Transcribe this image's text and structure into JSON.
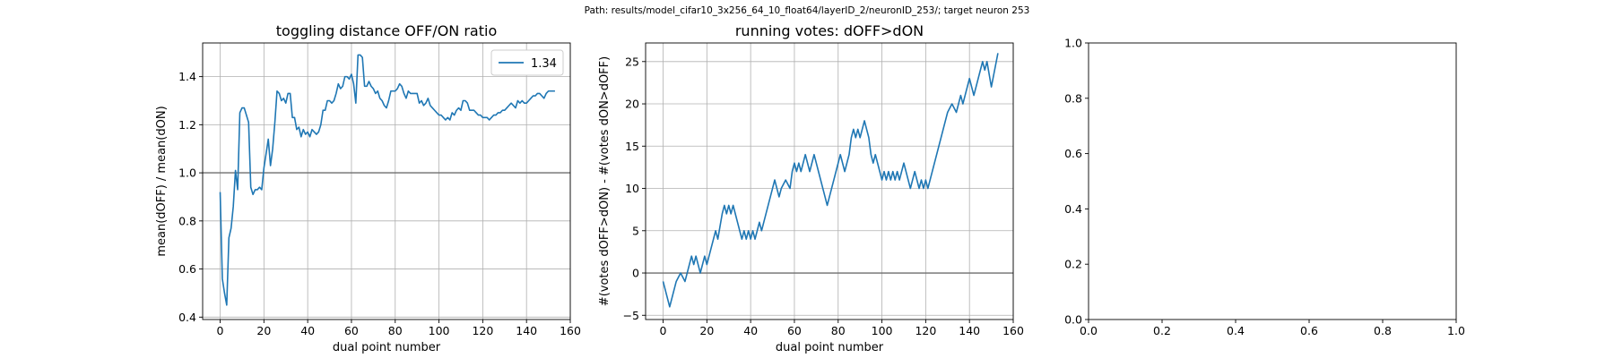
{
  "suptitle": "Path: results/model_cifar10_3x256_64_10_float64/layerID_2/neuronID_253/; target neuron 253",
  "chart_data": [
    {
      "type": "line",
      "title": "toggling distance OFF/ON ratio",
      "xlabel": "dual point number",
      "ylabel": "mean(dOFF) / mean(dON)",
      "xlim": [
        -8,
        160
      ],
      "ylim": [
        0.39,
        1.54
      ],
      "xticks": [
        0,
        20,
        40,
        60,
        80,
        100,
        120,
        140,
        160
      ],
      "yticks": [
        0.4,
        0.6,
        0.8,
        1.0,
        1.2,
        1.4
      ],
      "ytick_labels": [
        "0.4",
        "0.6",
        "0.8",
        "1.0",
        "1.2",
        "1.4"
      ],
      "grid": true,
      "hline": 1.0,
      "legend": {
        "position": "top-right",
        "entries": [
          "1.34"
        ]
      },
      "series": [
        {
          "name": "1.34",
          "color": "#1f77b4",
          "x": [
            0,
            1,
            2,
            3,
            4,
            5,
            6,
            7,
            8,
            9,
            10,
            11,
            12,
            13,
            14,
            15,
            16,
            17,
            18,
            19,
            20,
            21,
            22,
            23,
            24,
            25,
            26,
            27,
            28,
            29,
            30,
            31,
            32,
            33,
            34,
            35,
            36,
            37,
            38,
            39,
            40,
            41,
            42,
            43,
            44,
            45,
            46,
            47,
            48,
            49,
            50,
            51,
            52,
            53,
            54,
            55,
            56,
            57,
            58,
            59,
            60,
            61,
            62,
            63,
            64,
            65,
            66,
            67,
            68,
            69,
            70,
            71,
            72,
            73,
            74,
            75,
            76,
            77,
            78,
            79,
            80,
            81,
            82,
            83,
            84,
            85,
            86,
            87,
            88,
            89,
            90,
            91,
            92,
            93,
            94,
            95,
            96,
            97,
            98,
            99,
            100,
            101,
            102,
            103,
            104,
            105,
            106,
            107,
            108,
            109,
            110,
            111,
            112,
            113,
            114,
            115,
            116,
            117,
            118,
            119,
            120,
            121,
            122,
            123,
            124,
            125,
            126,
            127,
            128,
            129,
            130,
            131,
            132,
            133,
            134,
            135,
            136,
            137,
            138,
            139,
            140,
            141,
            142,
            143,
            144,
            145,
            146,
            147,
            148,
            149,
            150,
            151,
            152,
            153
          ],
          "y": [
            0.92,
            0.56,
            0.5,
            0.45,
            0.73,
            0.77,
            0.86,
            1.01,
            0.93,
            1.25,
            1.27,
            1.27,
            1.24,
            1.21,
            0.94,
            0.91,
            0.93,
            0.93,
            0.94,
            0.93,
            1.02,
            1.08,
            1.14,
            1.03,
            1.1,
            1.21,
            1.34,
            1.33,
            1.3,
            1.31,
            1.29,
            1.33,
            1.33,
            1.23,
            1.23,
            1.18,
            1.19,
            1.15,
            1.18,
            1.16,
            1.17,
            1.15,
            1.18,
            1.17,
            1.16,
            1.17,
            1.2,
            1.26,
            1.26,
            1.3,
            1.3,
            1.29,
            1.3,
            1.33,
            1.37,
            1.35,
            1.36,
            1.4,
            1.4,
            1.39,
            1.41,
            1.37,
            1.29,
            1.49,
            1.49,
            1.48,
            1.36,
            1.36,
            1.38,
            1.36,
            1.35,
            1.33,
            1.34,
            1.31,
            1.3,
            1.28,
            1.27,
            1.3,
            1.34,
            1.34,
            1.34,
            1.35,
            1.37,
            1.36,
            1.33,
            1.31,
            1.34,
            1.33,
            1.33,
            1.33,
            1.33,
            1.29,
            1.3,
            1.28,
            1.29,
            1.31,
            1.28,
            1.27,
            1.26,
            1.25,
            1.24,
            1.24,
            1.23,
            1.22,
            1.23,
            1.22,
            1.25,
            1.24,
            1.26,
            1.27,
            1.26,
            1.3,
            1.3,
            1.29,
            1.26,
            1.26,
            1.26,
            1.25,
            1.24,
            1.24,
            1.23,
            1.23,
            1.23,
            1.22,
            1.23,
            1.24,
            1.24,
            1.25,
            1.25,
            1.26,
            1.26,
            1.27,
            1.28,
            1.29,
            1.28,
            1.27,
            1.3,
            1.29,
            1.3,
            1.29,
            1.29,
            1.3,
            1.31,
            1.32,
            1.32,
            1.33,
            1.33,
            1.32,
            1.31,
            1.33,
            1.34,
            1.34,
            1.34,
            1.34
          ]
        }
      ]
    },
    {
      "type": "line",
      "title": "running votes: dOFF>dON",
      "xlabel": "dual point number",
      "ylabel": "#(votes dOFF>dON) - #(votes dON>dOFF)",
      "xlim": [
        -8,
        160
      ],
      "ylim": [
        -5.5,
        27.2
      ],
      "xticks": [
        0,
        20,
        40,
        60,
        80,
        100,
        120,
        140,
        160
      ],
      "yticks": [
        -5,
        0,
        5,
        10,
        15,
        20,
        25
      ],
      "ytick_labels": [
        "−5",
        "0",
        "5",
        "10",
        "15",
        "20",
        "25"
      ],
      "grid": true,
      "hline": 0,
      "series": [
        {
          "color": "#1f77b4",
          "x": [
            0,
            3,
            6,
            8,
            10,
            12,
            13,
            14,
            15,
            16,
            17,
            19,
            20,
            22,
            24,
            25,
            27,
            28,
            29,
            30,
            31,
            32,
            33,
            34,
            35,
            36,
            37,
            38,
            39,
            40,
            41,
            42,
            43,
            44,
            45,
            46,
            48,
            50,
            51,
            52,
            53,
            54,
            56,
            58,
            59,
            60,
            61,
            62,
            63,
            65,
            67,
            69,
            71,
            73,
            75,
            77,
            79,
            81,
            83,
            85,
            86,
            87,
            88,
            89,
            90,
            92,
            94,
            95,
            96,
            97,
            98,
            99,
            100,
            101,
            102,
            103,
            104,
            105,
            106,
            107,
            108,
            110,
            112,
            113,
            114,
            115,
            116,
            117,
            118,
            119,
            120,
            121,
            122,
            124,
            126,
            128,
            130,
            132,
            134,
            135,
            136,
            137,
            138,
            140,
            142,
            143,
            144,
            145,
            146,
            147,
            148,
            150,
            153
          ],
          "y": [
            -1,
            -4,
            -1,
            0,
            -1,
            1,
            2,
            1,
            2,
            1,
            0,
            2,
            1,
            3,
            5,
            4,
            7,
            8,
            7,
            8,
            7,
            8,
            7,
            6,
            5,
            4,
            5,
            4,
            5,
            4,
            5,
            4,
            5,
            6,
            5,
            6,
            8,
            10,
            11,
            10,
            9,
            10,
            11,
            10,
            12,
            13,
            12,
            13,
            12,
            14,
            12,
            14,
            12,
            10,
            8,
            10,
            12,
            14,
            12,
            14,
            16,
            17,
            16,
            17,
            16,
            18,
            16,
            14,
            13,
            14,
            13,
            12,
            11,
            12,
            11,
            12,
            11,
            12,
            11,
            12,
            11,
            13,
            11,
            10,
            11,
            12,
            11,
            10,
            11,
            10,
            11,
            10,
            11,
            13,
            15,
            17,
            19,
            20,
            19,
            20,
            21,
            20,
            21,
            23,
            21,
            22,
            23,
            24,
            25,
            24,
            25,
            22,
            26
          ]
        }
      ]
    },
    {
      "type": "line",
      "title": "",
      "xlim": [
        0,
        1
      ],
      "ylim": [
        0,
        1
      ],
      "xticks": [
        0,
        0.2,
        0.4,
        0.6,
        0.8,
        1.0
      ],
      "yticks": [
        0,
        0.2,
        0.4,
        0.6,
        0.8,
        1.0
      ],
      "xtick_labels": [
        "0.0",
        "0.2",
        "0.4",
        "0.6",
        "0.8",
        "1.0"
      ],
      "ytick_labels": [
        "0.0",
        "0.2",
        "0.4",
        "0.6",
        "0.8",
        "1.0"
      ],
      "grid": false,
      "series": []
    }
  ]
}
